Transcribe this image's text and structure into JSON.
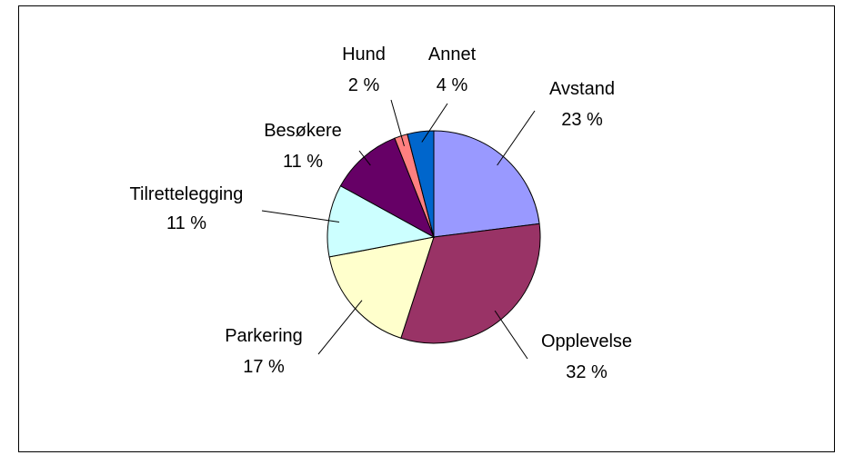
{
  "chart_data": {
    "type": "pie",
    "categories": [
      "Avstand",
      "Opplevelse",
      "Parkering",
      "Tilrettelegging",
      "Besøkere",
      "Hund",
      "Annet"
    ],
    "values": [
      23,
      32,
      17,
      11,
      11,
      2,
      4
    ],
    "value_labels": [
      "23 %",
      "32 %",
      "17 %",
      "11 %",
      "11 %",
      "2 %",
      "4 %"
    ],
    "colors": [
      "#9999ff",
      "#993366",
      "#ffffcc",
      "#ccffff",
      "#660066",
      "#ff8080",
      "#0066cc"
    ]
  }
}
